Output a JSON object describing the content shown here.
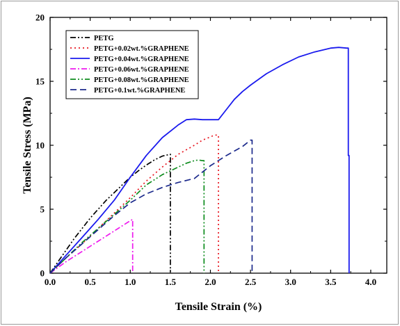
{
  "chart_data": {
    "type": "line",
    "xlabel": "Tensile Strain (%)",
    "ylabel": "Tensile Stress (MPa)",
    "xlim": [
      0,
      4.2
    ],
    "ylim": [
      0,
      20
    ],
    "xticks": [
      "0.0",
      "0.5",
      "1.0",
      "1.5",
      "2.0",
      "2.5",
      "3.0",
      "3.5",
      "4.0"
    ],
    "yticks": [
      "0",
      "5",
      "10",
      "15",
      "20"
    ],
    "grid": false,
    "legend_position": "top-left",
    "series": [
      {
        "name": "PETG",
        "color": "#000000",
        "dash": "dash-dot-dot",
        "x": [
          0,
          0.1,
          0.2,
          0.3,
          0.4,
          0.5,
          0.6,
          0.7,
          0.8,
          0.9,
          1.0,
          1.1,
          1.2,
          1.3,
          1.4,
          1.5,
          1.5
        ],
        "y": [
          0,
          0.9,
          1.8,
          2.7,
          3.5,
          4.3,
          5.0,
          5.7,
          6.3,
          6.9,
          7.5,
          8.0,
          8.45,
          8.85,
          9.15,
          9.3,
          0
        ]
      },
      {
        "name": "PETG+0.02wt.%GRAPHENE",
        "color": "#e8141e",
        "dash": "dot",
        "x": [
          0,
          0.2,
          0.4,
          0.6,
          0.8,
          1.0,
          1.2,
          1.4,
          1.6,
          1.8,
          1.9,
          2.0,
          2.05,
          2.08,
          2.1,
          2.1
        ],
        "y": [
          0,
          1.2,
          2.3,
          3.5,
          4.7,
          5.9,
          7.2,
          8.3,
          9.3,
          10.0,
          10.4,
          10.65,
          10.8,
          10.8,
          10.8,
          0
        ]
      },
      {
        "name": "PETG+0.04wt.%GRAPHENE",
        "color": "#1a1aee",
        "dash": "solid",
        "x": [
          0,
          0.2,
          0.4,
          0.6,
          0.8,
          1.0,
          1.2,
          1.4,
          1.6,
          1.7,
          1.8,
          1.9,
          2.0,
          2.1,
          2.2,
          2.3,
          2.4,
          2.5,
          2.7,
          2.9,
          3.1,
          3.3,
          3.5,
          3.6,
          3.7,
          3.72,
          3.72,
          3.73,
          3.73
        ],
        "y": [
          0,
          1.4,
          2.8,
          4.2,
          5.7,
          7.5,
          9.2,
          10.6,
          11.6,
          12.0,
          12.05,
          12.0,
          12.0,
          12.0,
          12.8,
          13.6,
          14.2,
          14.7,
          15.6,
          16.3,
          16.9,
          17.3,
          17.6,
          17.65,
          17.6,
          17.6,
          9.2,
          9.2,
          0
        ]
      },
      {
        "name": "PETG+0.06wt.%GRAPHENE",
        "color": "#ee1aee",
        "dash": "dash-dot",
        "x": [
          0,
          0.2,
          0.4,
          0.6,
          0.8,
          0.9,
          1.0,
          1.03,
          1.03
        ],
        "y": [
          0,
          0.9,
          1.7,
          2.5,
          3.3,
          3.7,
          4.1,
          4.2,
          0
        ]
      },
      {
        "name": "PETG+0.08wt.%GRAPHENE",
        "color": "#0e8c1e",
        "dash": "dash-dot-dot",
        "x": [
          0,
          0.2,
          0.4,
          0.6,
          0.8,
          1.0,
          1.2,
          1.4,
          1.6,
          1.7,
          1.8,
          1.85,
          1.9,
          1.92,
          1.92
        ],
        "y": [
          0,
          1.2,
          2.4,
          3.5,
          4.6,
          5.7,
          6.9,
          7.7,
          8.3,
          8.6,
          8.8,
          8.85,
          8.8,
          8.8,
          0
        ]
      },
      {
        "name": "PETG+0.1wt.%GRAPHENE",
        "color": "#1c2a8c",
        "dash": "dash",
        "x": [
          0,
          0.2,
          0.4,
          0.6,
          0.8,
          1.0,
          1.2,
          1.4,
          1.6,
          1.8,
          2.0,
          2.2,
          2.4,
          2.5,
          2.52,
          2.52
        ],
        "y": [
          0,
          1.2,
          2.3,
          3.4,
          4.5,
          5.5,
          6.2,
          6.7,
          7.1,
          7.4,
          8.4,
          9.2,
          9.9,
          10.4,
          10.4,
          0
        ]
      }
    ]
  }
}
